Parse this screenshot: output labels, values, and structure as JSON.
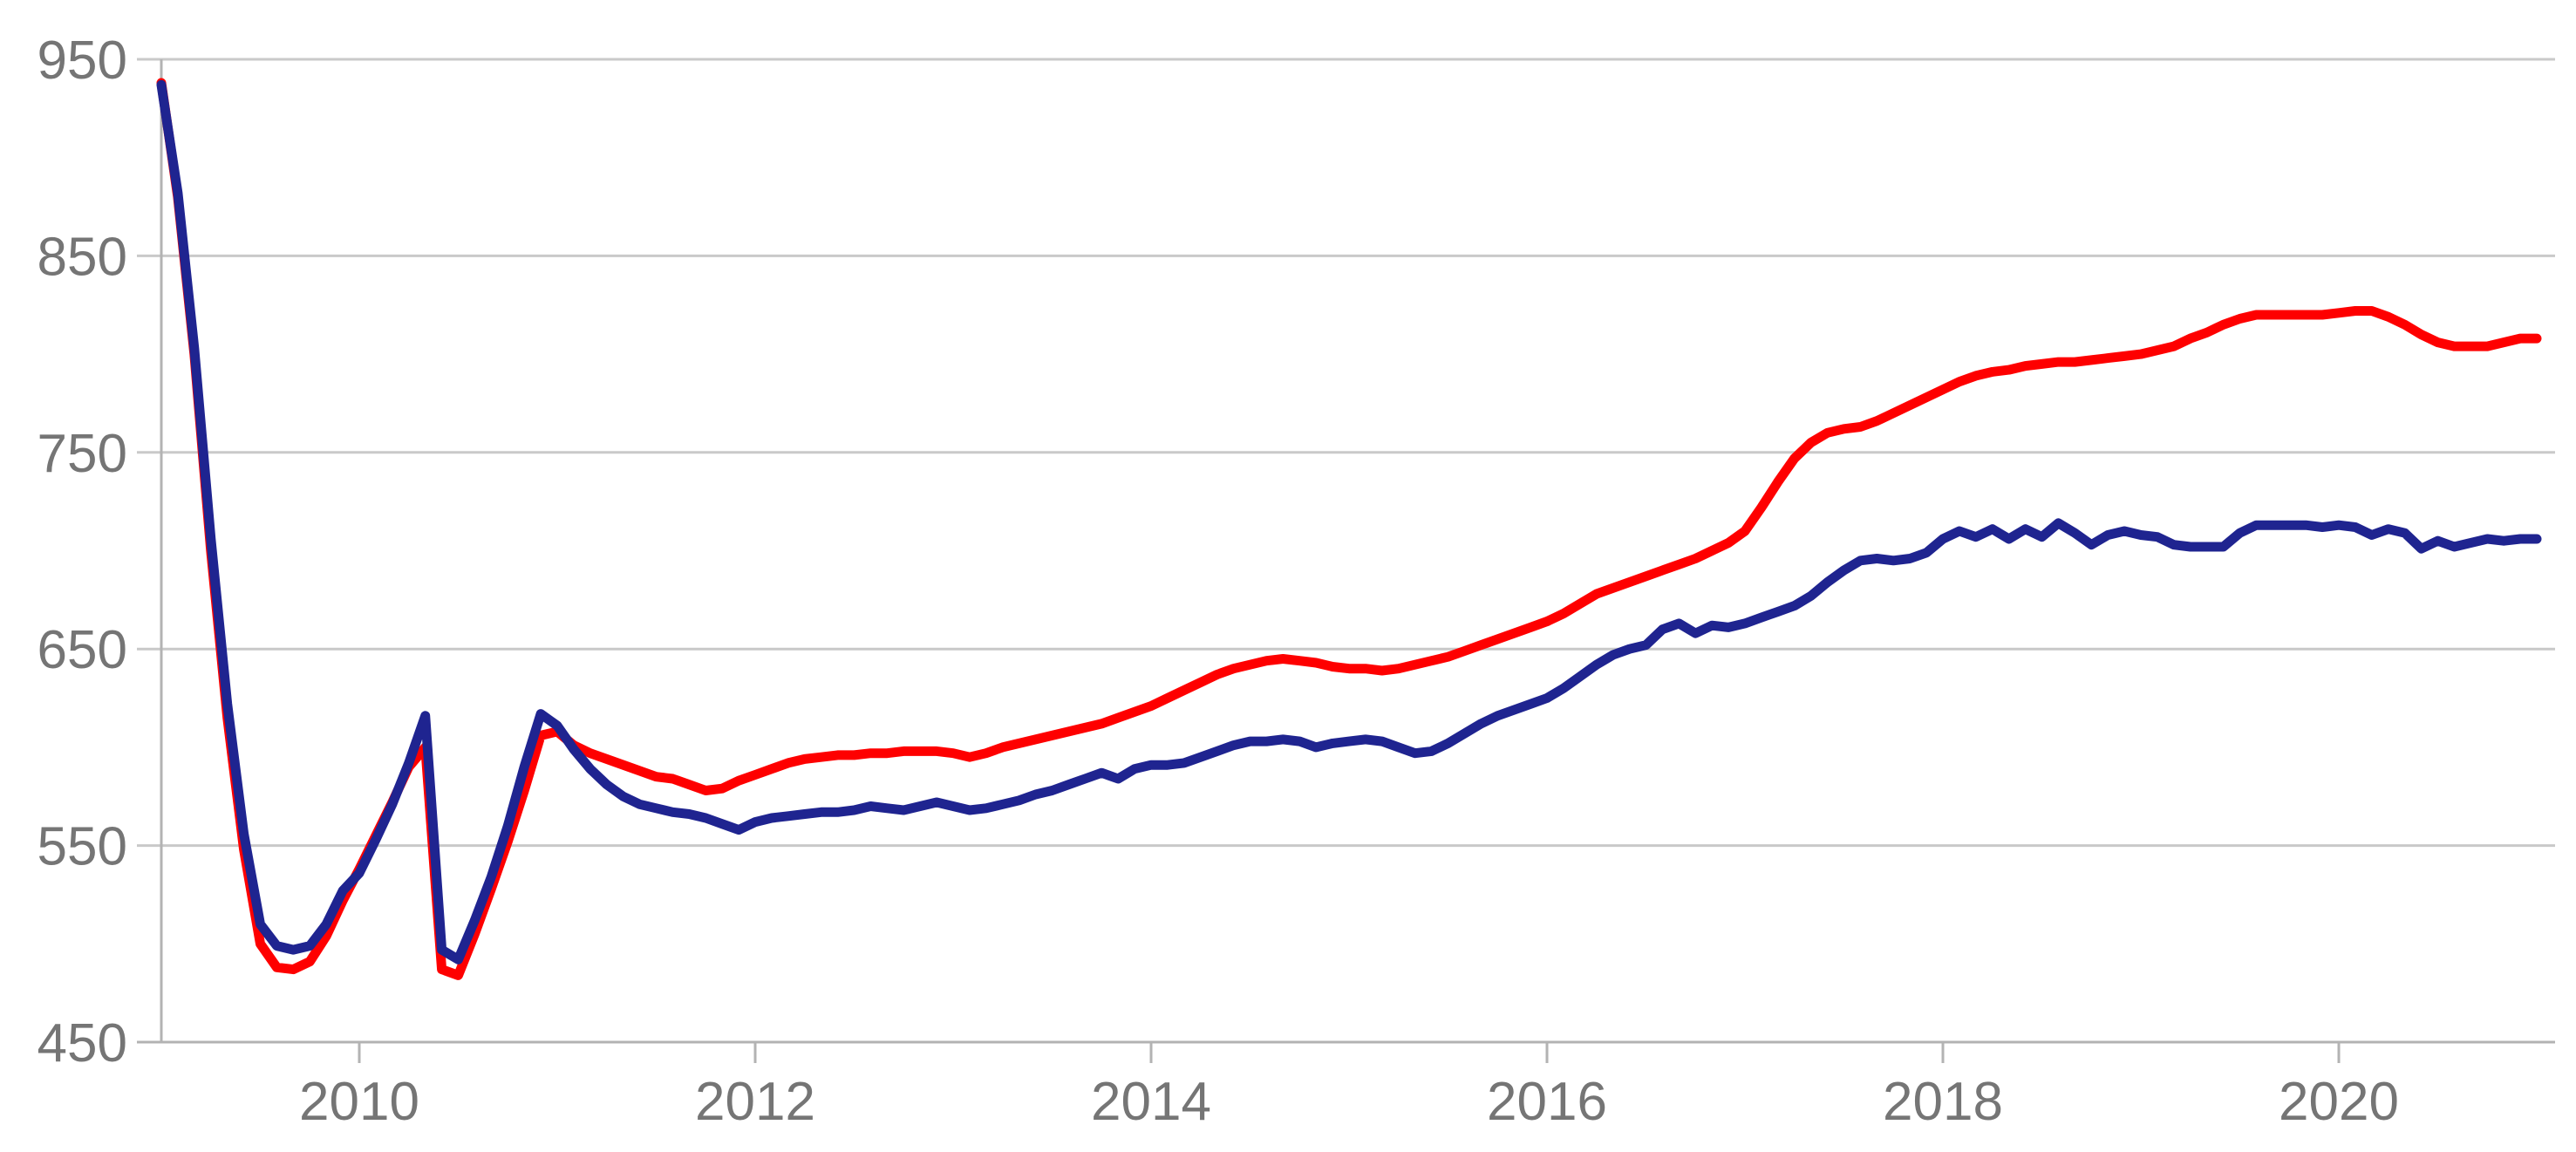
{
  "chart_data": {
    "type": "line",
    "grid": true,
    "legend": "none",
    "x_axis": {
      "start_year": 2009.0,
      "end_year": 2021.1,
      "tick_years": [
        2010,
        2012,
        2014,
        2016,
        2018,
        2020
      ],
      "tick_labels": [
        "2010",
        "2012",
        "2014",
        "2016",
        "2018",
        "2020"
      ]
    },
    "y_axis": {
      "min": 450,
      "max": 950,
      "tick_values": [
        450,
        550,
        650,
        750,
        850,
        950
      ],
      "tick_labels": [
        "450",
        "550",
        "650",
        "750",
        "850",
        "950"
      ]
    },
    "series_time_step": "monthly",
    "series": [
      {
        "name": "red-line",
        "color": "#fe0000",
        "start_year": 2009.0,
        "monthly_values": [
          938,
          880,
          800,
          700,
          615,
          548,
          500,
          488,
          487,
          491,
          504,
          522,
          538,
          555,
          572,
          590,
          600,
          487,
          484,
          505,
          528,
          552,
          578,
          606,
          608,
          601,
          597,
          594,
          591,
          588,
          585,
          584,
          581,
          578,
          579,
          583,
          586,
          589,
          592,
          594,
          595,
          596,
          596,
          597,
          597,
          598,
          598,
          598,
          597,
          595,
          597,
          600,
          602,
          604,
          606,
          608,
          610,
          612,
          615,
          618,
          621,
          625,
          629,
          633,
          637,
          640,
          642,
          644,
          645,
          644,
          643,
          641,
          640,
          640,
          639,
          640,
          642,
          644,
          646,
          649,
          652,
          655,
          658,
          661,
          664,
          668,
          673,
          678,
          681,
          684,
          687,
          690,
          693,
          696,
          700,
          704,
          710,
          722,
          735,
          747,
          755,
          760,
          762,
          763,
          766,
          770,
          774,
          778,
          782,
          786,
          789,
          791,
          792,
          794,
          795,
          796,
          796,
          797,
          798,
          799,
          800,
          802,
          804,
          808,
          811,
          815,
          818,
          820,
          820,
          820,
          820,
          820,
          821,
          822,
          822,
          819,
          815,
          810,
          806,
          804,
          804,
          804,
          806,
          808,
          808
        ]
      },
      {
        "name": "navy-line",
        "color": "#1f2490",
        "start_year": 2009.0,
        "monthly_values": [
          937,
          882,
          803,
          706,
          622,
          556,
          510,
          499,
          497,
          499,
          510,
          527,
          536,
          553,
          571,
          592,
          616,
          497,
          492,
          512,
          534,
          560,
          590,
          617,
          611,
          599,
          589,
          581,
          575,
          571,
          569,
          567,
          566,
          564,
          561,
          558,
          562,
          564,
          565,
          566,
          567,
          567,
          568,
          570,
          569,
          568,
          570,
          572,
          570,
          568,
          569,
          571,
          573,
          576,
          578,
          581,
          584,
          587,
          584,
          589,
          591,
          591,
          592,
          595,
          598,
          601,
          603,
          603,
          604,
          603,
          600,
          602,
          603,
          604,
          603,
          600,
          597,
          598,
          602,
          607,
          612,
          616,
          619,
          622,
          625,
          630,
          636,
          642,
          647,
          650,
          652,
          660,
          663,
          658,
          662,
          661,
          663,
          666,
          669,
          672,
          677,
          684,
          690,
          695,
          696,
          695,
          696,
          699,
          706,
          710,
          707,
          711,
          706,
          711,
          707,
          714,
          709,
          703,
          708,
          710,
          708,
          707,
          703,
          702,
          702,
          702,
          709,
          713,
          713,
          713,
          713,
          712,
          713,
          712,
          708,
          711,
          709,
          701,
          705,
          702,
          704,
          706,
          705,
          706,
          706
        ]
      }
    ]
  },
  "colors": {
    "background": "#ffffff",
    "grid": "#c9c9c9",
    "axis": "#b3b3b3",
    "tick_label": "#757575",
    "red_series": "#fe0000",
    "navy_series": "#1f2490"
  }
}
